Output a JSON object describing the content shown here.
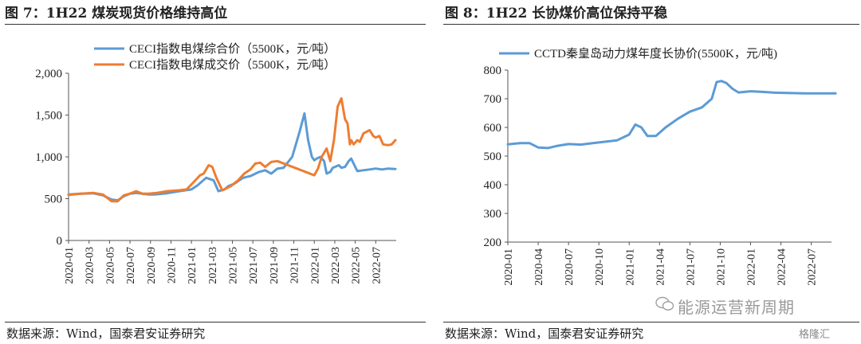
{
  "left": {
    "title": "图 7：1H22 煤炭现货价格维持高位",
    "source": "数据来源：Wind，国泰君安证券研究"
  },
  "right": {
    "title": "图 8：1H22 长协煤价高位保持平稳",
    "source": "数据来源：Wind，国泰君安证券研究"
  },
  "watermark": {
    "text": "能源运营新周期",
    "logo": "格隆汇",
    "icon": "wechat-icon"
  },
  "colors": {
    "blue": "#5b9bd5",
    "orange": "#ed7d31"
  },
  "chart_data": [
    {
      "type": "line",
      "title": "图 7：1H22 煤炭现货价格维持高位",
      "x_tick_labels": [
        "2020-01",
        "2020-03",
        "2020-05",
        "2020-07",
        "2020-09",
        "2020-11",
        "2021-01",
        "2021-03",
        "2021-05",
        "2021-07",
        "2021-09",
        "2021-11",
        "2022-01",
        "2022-03",
        "2022-05",
        "2022-07"
      ],
      "x_range": [
        "2020-01",
        "2022-09"
      ],
      "ylim": [
        0,
        2000
      ],
      "y_ticks": [
        0,
        500,
        1000,
        1500,
        2000
      ],
      "y_tick_labels": [
        "0",
        "500",
        "1,000",
        "1,500",
        "2,000"
      ],
      "legend": "top-center",
      "grid": false,
      "series": [
        {
          "name": "CECI指数电煤综合价（5500K，元/吨）",
          "color": "#5b9bd5",
          "x": [
            2020.0,
            2020.1,
            2020.2,
            2020.28,
            2020.35,
            2020.4,
            2020.45,
            2020.5,
            2020.55,
            2020.6,
            2020.65,
            2020.7,
            2020.8,
            2020.9,
            2021.0,
            2021.05,
            2021.12,
            2021.18,
            2021.22,
            2021.27,
            2021.3,
            2021.35,
            2021.42,
            2021.48,
            2021.55,
            2021.6,
            2021.65,
            2021.7,
            2021.75,
            2021.82,
            2021.88,
            2021.92,
            2021.95,
            2021.98,
            2022.0,
            2022.02,
            2022.05,
            2022.08,
            2022.1,
            2022.13,
            2022.15,
            2022.2,
            2022.22,
            2022.25,
            2022.28,
            2022.3,
            2022.35,
            2022.4,
            2022.45,
            2022.5,
            2022.55,
            2022.6,
            2022.66
          ],
          "y": [
            550,
            560,
            565,
            540,
            490,
            480,
            530,
            560,
            570,
            560,
            550,
            550,
            565,
            590,
            610,
            660,
            750,
            720,
            590,
            610,
            650,
            680,
            750,
            770,
            820,
            840,
            800,
            860,
            870,
            1000,
            1300,
            1520,
            1200,
            1000,
            960,
            980,
            1000,
            950,
            800,
            820,
            870,
            900,
            870,
            880,
            950,
            980,
            830,
            840,
            850,
            860,
            850,
            860,
            855
          ]
        },
        {
          "name": "CECI指数电煤成交价（5500K，元/吨）",
          "color": "#ed7d31",
          "x": [
            2020.0,
            2020.1,
            2020.2,
            2020.28,
            2020.35,
            2020.4,
            2020.45,
            2020.5,
            2020.55,
            2020.6,
            2020.65,
            2020.72,
            2020.8,
            2020.9,
            2020.96,
            2021.02,
            2021.07,
            2021.1,
            2021.14,
            2021.17,
            2021.2,
            2021.25,
            2021.32,
            2021.38,
            2021.43,
            2021.48,
            2021.52,
            2021.56,
            2021.6,
            2021.65,
            2021.7,
            2022.0,
            2022.03,
            2022.06,
            2022.1,
            2022.13,
            2022.16,
            2022.19,
            2022.22,
            2022.25,
            2022.27,
            2022.29,
            2022.3,
            2022.32,
            2022.35,
            2022.37,
            2022.4,
            2022.45,
            2022.48,
            2022.5,
            2022.53,
            2022.56,
            2022.6,
            2022.63,
            2022.66
          ],
          "y": [
            545,
            560,
            570,
            550,
            470,
            470,
            540,
            560,
            590,
            560,
            560,
            570,
            590,
            600,
            610,
            700,
            780,
            800,
            900,
            880,
            760,
            600,
            650,
            720,
            800,
            850,
            920,
            930,
            880,
            940,
            950,
            780,
            860,
            1000,
            1100,
            950,
            1200,
            1600,
            1700,
            1450,
            1400,
            1150,
            1200,
            1150,
            1200,
            1180,
            1280,
            1320,
            1250,
            1230,
            1250,
            1150,
            1140,
            1150,
            1200
          ]
        }
      ]
    },
    {
      "type": "line",
      "title": "图 8：1H22 长协煤价高位保持平稳",
      "x_tick_labels": [
        "2020-01",
        "2020-04",
        "2020-07",
        "2020-10",
        "2021-01",
        "2021-04",
        "2021-07",
        "2021-10",
        "2022-01",
        "2022-04",
        "2022-07"
      ],
      "x_range": [
        "2020-01",
        "2022-09"
      ],
      "ylim": [
        200,
        800
      ],
      "y_ticks": [
        200,
        300,
        400,
        500,
        600,
        700,
        800
      ],
      "y_tick_labels": [
        "200",
        "300",
        "400",
        "500",
        "600",
        "700",
        "800"
      ],
      "legend": "top-center",
      "grid": false,
      "series": [
        {
          "name": "CCTD秦皇岛动力煤年度长协价(5500K，元/吨)",
          "color": "#5b9bd5",
          "x": [
            2020.0,
            2020.1,
            2020.18,
            2020.25,
            2020.33,
            2020.4,
            2020.5,
            2020.6,
            2020.7,
            2020.8,
            2020.9,
            2021.0,
            2021.05,
            2021.1,
            2021.15,
            2021.22,
            2021.3,
            2021.4,
            2021.5,
            2021.6,
            2021.68,
            2021.72,
            2021.76,
            2021.8,
            2021.85,
            2021.9,
            2022.0,
            2022.1,
            2022.2,
            2022.3,
            2022.45,
            2022.6,
            2022.7
          ],
          "y": [
            541,
            545,
            545,
            530,
            528,
            535,
            542,
            540,
            545,
            550,
            555,
            575,
            610,
            600,
            570,
            570,
            600,
            630,
            655,
            670,
            700,
            758,
            762,
            755,
            735,
            722,
            726,
            724,
            721,
            720,
            719,
            719,
            719
          ]
        }
      ]
    }
  ]
}
